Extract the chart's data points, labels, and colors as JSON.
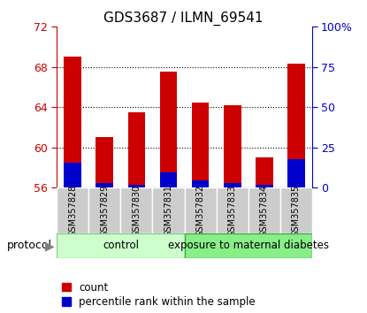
{
  "title": "GDS3687 / ILMN_69541",
  "samples": [
    "GSM357828",
    "GSM357829",
    "GSM357830",
    "GSM357831",
    "GSM357832",
    "GSM357833",
    "GSM357834",
    "GSM357835"
  ],
  "red_tops": [
    69.0,
    61.0,
    63.5,
    67.5,
    64.5,
    64.2,
    59.0,
    68.3
  ],
  "blue_tops": [
    58.5,
    56.5,
    56.3,
    57.5,
    56.7,
    56.5,
    56.3,
    58.8
  ],
  "baseline": 56,
  "ylim_left": [
    56,
    72
  ],
  "ylim_right": [
    0,
    100
  ],
  "yticks_left": [
    56,
    60,
    64,
    68,
    72
  ],
  "yticks_right": [
    0,
    25,
    50,
    75,
    100
  ],
  "ytick_labels_right": [
    "0",
    "25",
    "50",
    "75",
    "100%"
  ],
  "red_color": "#cc0000",
  "blue_color": "#0000cc",
  "bar_width": 0.55,
  "ctrl_color_light": "#ccffcc",
  "ctrl_color_border": "#88cc88",
  "diab_color_light": "#88ee88",
  "diab_color_border": "#44aa44",
  "protocol_label": "protocol",
  "legend_items": [
    "count",
    "percentile rank within the sample"
  ],
  "legend_colors": [
    "#cc0000",
    "#0000cc"
  ],
  "tick_label_area_color": "#cccccc",
  "dotted_grid_yticks": [
    60,
    64,
    68
  ]
}
